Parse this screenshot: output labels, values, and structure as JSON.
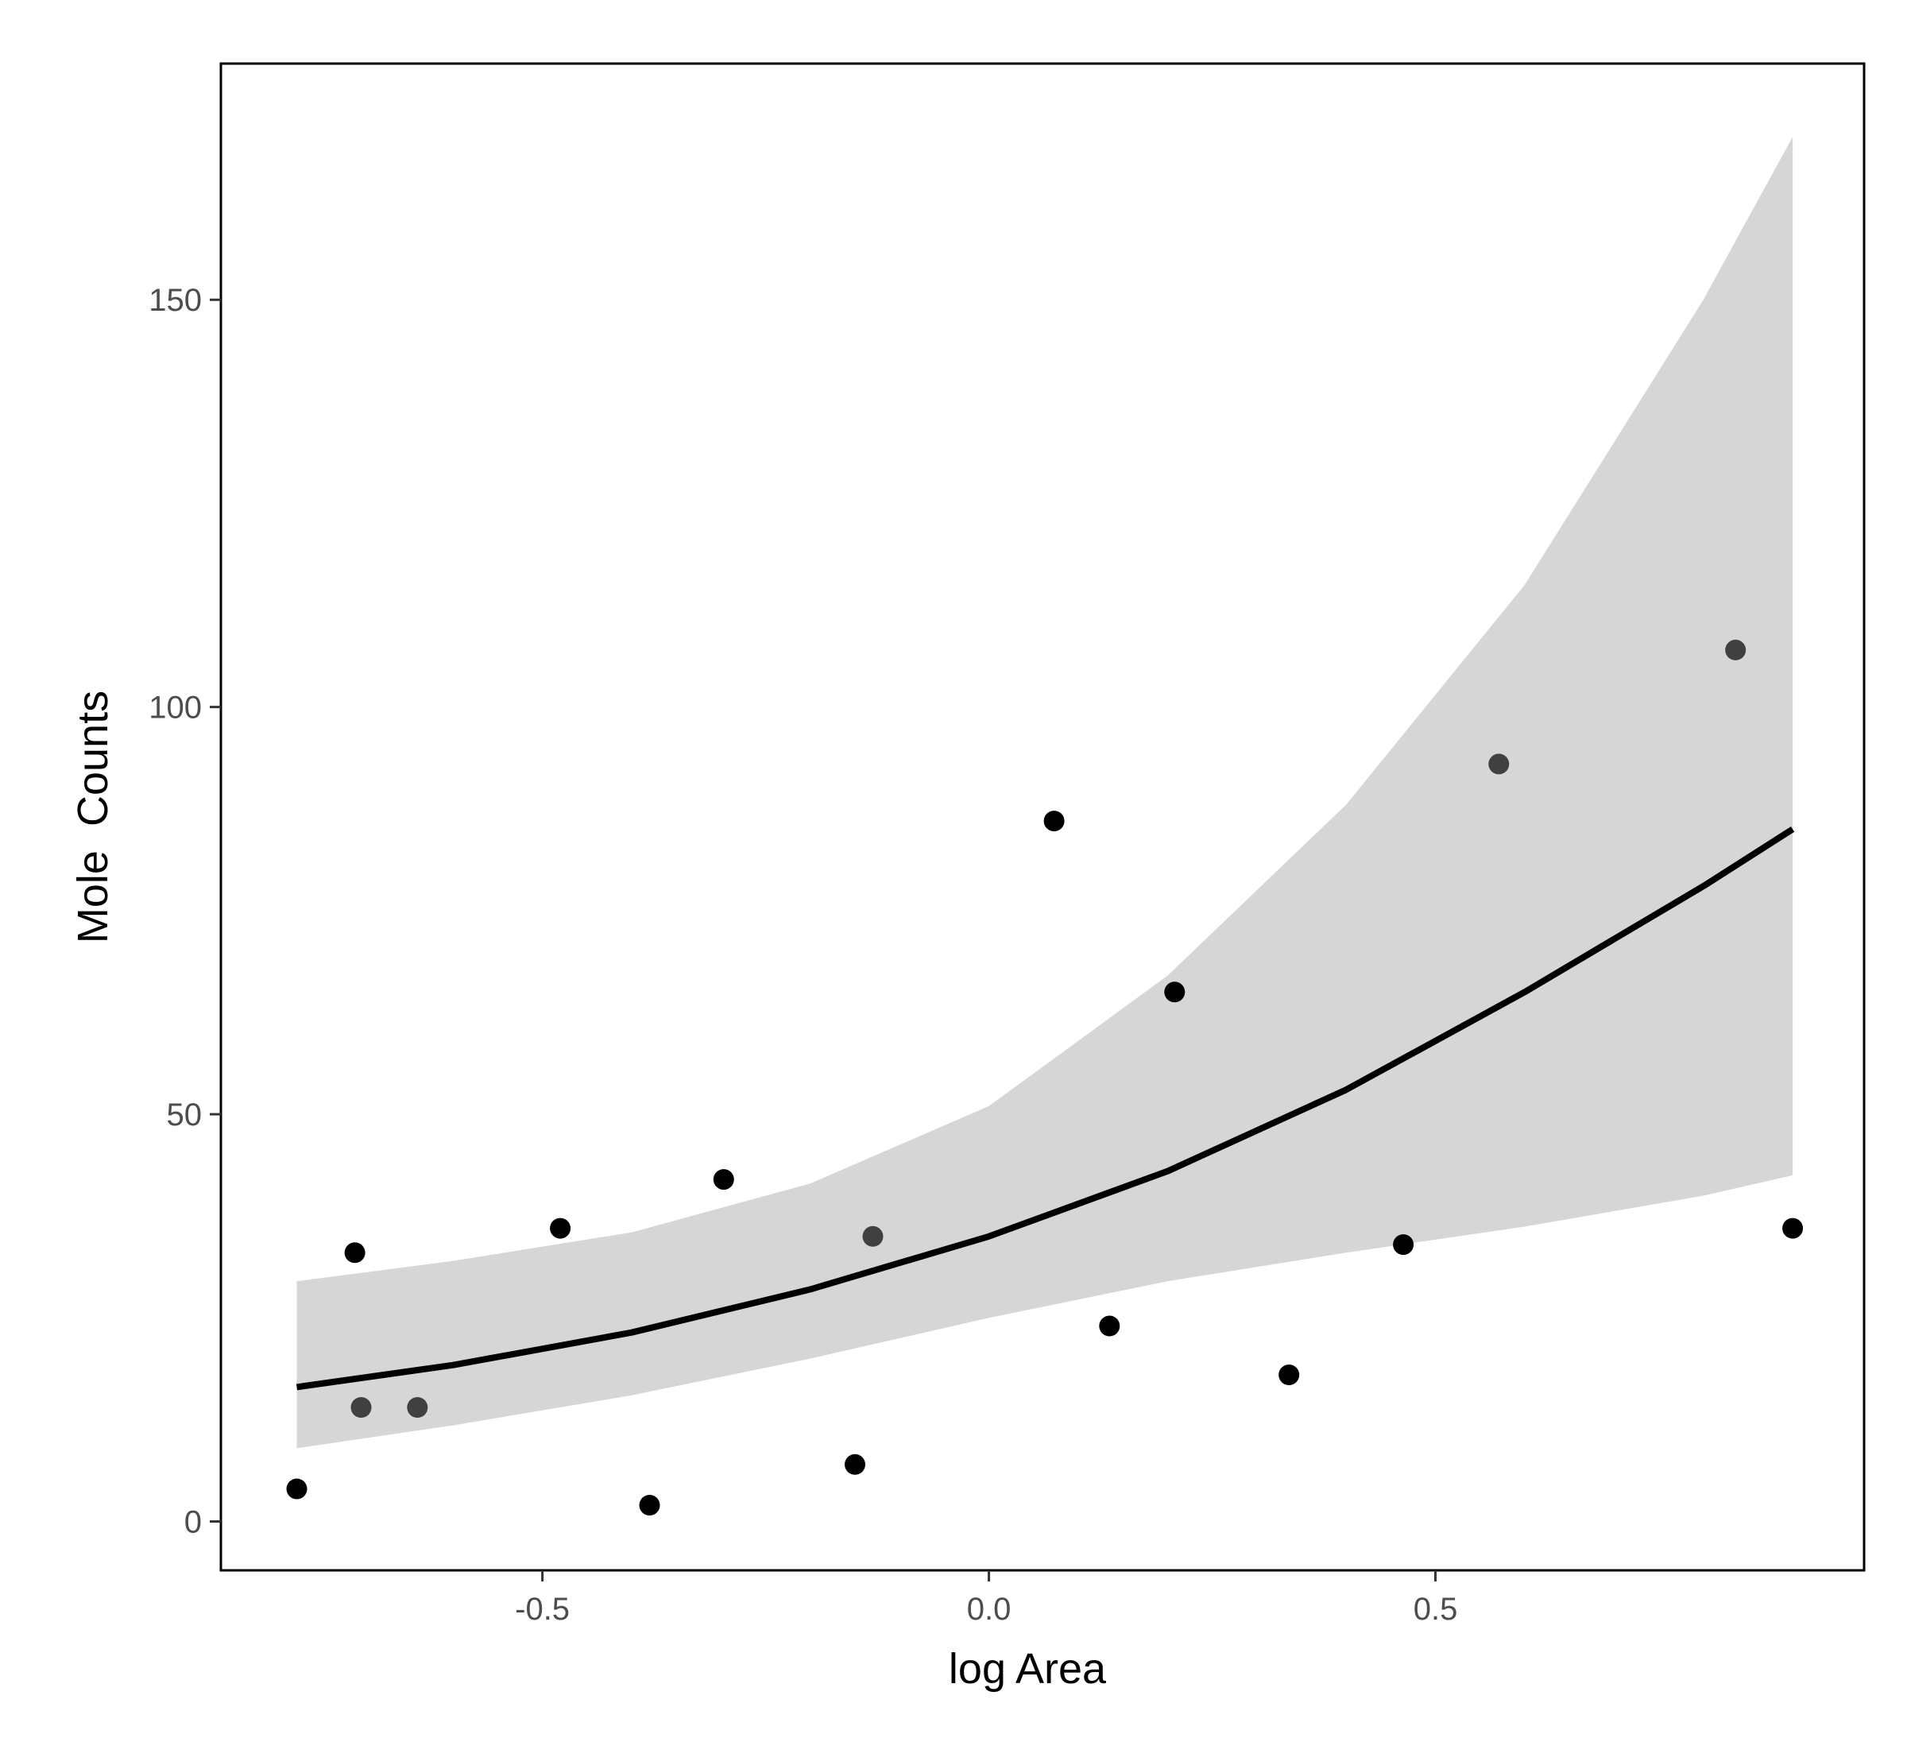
{
  "chart_data": {
    "type": "scatter",
    "xlabel": "log Area",
    "ylabel": "Mole  Counts",
    "xlim": [
      -0.86,
      0.98
    ],
    "ylim": [
      -6,
      179
    ],
    "x_ticks": [
      -0.5,
      0.0,
      0.5
    ],
    "x_tick_labels": [
      "-0.5",
      "0.0",
      "0.5"
    ],
    "y_ticks": [
      0,
      50,
      100,
      150
    ],
    "y_tick_labels": [
      "0",
      "50",
      "100",
      "150"
    ],
    "grid": false,
    "legend": "none",
    "points": [
      {
        "x": -0.775,
        "y": 4
      },
      {
        "x": -0.71,
        "y": 33
      },
      {
        "x": -0.703,
        "y": 14,
        "shade": "gray"
      },
      {
        "x": -0.64,
        "y": 14,
        "shade": "gray"
      },
      {
        "x": -0.48,
        "y": 36
      },
      {
        "x": -0.38,
        "y": 2
      },
      {
        "x": -0.297,
        "y": 42
      },
      {
        "x": -0.15,
        "y": 7
      },
      {
        "x": -0.13,
        "y": 35,
        "shade": "gray"
      },
      {
        "x": 0.073,
        "y": 86
      },
      {
        "x": 0.135,
        "y": 24
      },
      {
        "x": 0.208,
        "y": 65
      },
      {
        "x": 0.336,
        "y": 18
      },
      {
        "x": 0.464,
        "y": 34
      },
      {
        "x": 0.571,
        "y": 93,
        "shade": "gray"
      },
      {
        "x": 0.836,
        "y": 107,
        "shade": "gray"
      },
      {
        "x": 0.9,
        "y": 36
      }
    ],
    "fit": {
      "x": [
        -0.775,
        -0.6,
        -0.4,
        -0.2,
        0.0,
        0.2,
        0.4,
        0.6,
        0.8,
        0.9
      ],
      "y": [
        16.5,
        19.2,
        23.2,
        28.5,
        35.0,
        43.0,
        53.0,
        65.0,
        78.0,
        85.0
      ],
      "lower": [
        9.0,
        11.8,
        15.5,
        20.0,
        25.0,
        29.5,
        33.0,
        36.2,
        40.0,
        42.5
      ],
      "upper": [
        29.5,
        32.0,
        35.5,
        41.5,
        51.0,
        67.0,
        88.0,
        115.0,
        150.0,
        170.0
      ]
    },
    "colors": {
      "point": "#000000",
      "point_gray": "#404040",
      "line": "#000000",
      "band": "#d6d6d6",
      "frame": "#000000",
      "tick_text": "#4d4d4d"
    }
  }
}
